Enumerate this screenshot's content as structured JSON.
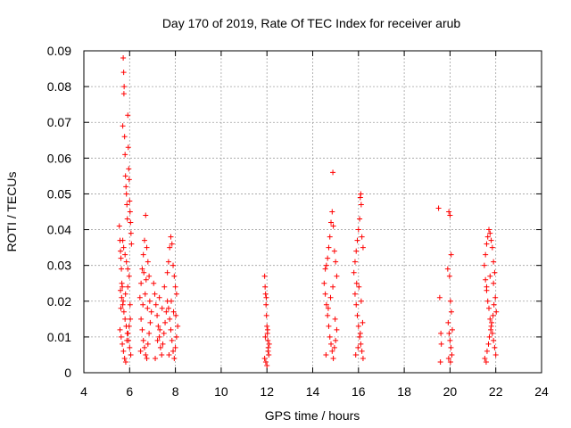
{
  "chart_data": {
    "type": "scatter",
    "title": "Day 170 of 2019, Rate Of TEC Index for receiver arub",
    "xlabel": "GPS time / hours",
    "ylabel": "ROTI / TECUs",
    "xlim": [
      4,
      24
    ],
    "ylim": [
      0,
      0.09
    ],
    "xticks": [
      4,
      6,
      8,
      10,
      12,
      14,
      16,
      18,
      20,
      22,
      24
    ],
    "yticks": [
      0,
      0.01,
      0.02,
      0.03,
      0.04,
      0.05,
      0.06,
      0.07,
      0.08,
      0.09
    ],
    "ytick_labels": [
      "0",
      "0.01",
      "0.02",
      "0.03",
      "0.04",
      "0.05",
      "0.06",
      "0.07",
      "0.08",
      "0.09"
    ],
    "grid": true,
    "marker": "+",
    "color": "#ff0000",
    "series": [
      {
        "name": "ROTI",
        "points": [
          [
            5.55,
            0.041
          ],
          [
            5.58,
            0.037
          ],
          [
            5.6,
            0.034
          ],
          [
            5.62,
            0.032
          ],
          [
            5.64,
            0.029
          ],
          [
            5.66,
            0.025
          ],
          [
            5.68,
            0.024
          ],
          [
            5.7,
            0.069
          ],
          [
            5.72,
            0.088
          ],
          [
            5.74,
            0.084
          ],
          [
            5.75,
            0.078
          ],
          [
            5.76,
            0.08
          ],
          [
            5.78,
            0.066
          ],
          [
            5.8,
            0.061
          ],
          [
            5.82,
            0.055
          ],
          [
            5.84,
            0.052
          ],
          [
            5.86,
            0.05
          ],
          [
            5.88,
            0.047
          ],
          [
            5.9,
            0.043
          ],
          [
            5.92,
            0.072
          ],
          [
            5.94,
            0.063
          ],
          [
            5.96,
            0.057
          ],
          [
            5.98,
            0.054
          ],
          [
            6.0,
            0.048
          ],
          [
            6.02,
            0.045
          ],
          [
            6.04,
            0.042
          ],
          [
            6.06,
            0.039
          ],
          [
            6.08,
            0.036
          ],
          [
            5.7,
            0.037
          ],
          [
            5.74,
            0.035
          ],
          [
            5.8,
            0.033
          ],
          [
            5.86,
            0.031
          ],
          [
            5.92,
            0.029
          ],
          [
            5.98,
            0.027
          ],
          [
            5.6,
            0.023
          ],
          [
            5.65,
            0.021
          ],
          [
            5.7,
            0.019
          ],
          [
            5.75,
            0.017
          ],
          [
            5.8,
            0.015
          ],
          [
            5.85,
            0.013
          ],
          [
            5.9,
            0.011
          ],
          [
            5.95,
            0.009
          ],
          [
            6.0,
            0.007
          ],
          [
            6.05,
            0.005
          ],
          [
            5.58,
            0.012
          ],
          [
            5.63,
            0.01
          ],
          [
            5.68,
            0.008
          ],
          [
            5.73,
            0.006
          ],
          [
            5.78,
            0.004
          ],
          [
            5.83,
            0.003
          ],
          [
            5.88,
            0.009
          ],
          [
            5.93,
            0.011
          ],
          [
            5.98,
            0.013
          ],
          [
            6.03,
            0.015
          ],
          [
            5.62,
            0.018
          ],
          [
            5.72,
            0.02
          ],
          [
            5.82,
            0.022
          ],
          [
            5.92,
            0.024
          ],
          [
            6.02,
            0.019
          ],
          [
            6.45,
            0.021
          ],
          [
            6.5,
            0.025
          ],
          [
            6.55,
            0.029
          ],
          [
            6.6,
            0.033
          ],
          [
            6.65,
            0.037
          ],
          [
            6.7,
            0.044
          ],
          [
            6.75,
            0.035
          ],
          [
            6.8,
            0.031
          ],
          [
            6.85,
            0.027
          ],
          [
            6.5,
            0.015
          ],
          [
            6.55,
            0.012
          ],
          [
            6.6,
            0.009
          ],
          [
            6.65,
            0.007
          ],
          [
            6.7,
            0.005
          ],
          [
            6.75,
            0.004
          ],
          [
            6.8,
            0.008
          ],
          [
            6.85,
            0.011
          ],
          [
            6.9,
            0.014
          ],
          [
            6.95,
            0.017
          ],
          [
            6.48,
            0.006
          ],
          [
            6.58,
            0.019
          ],
          [
            6.68,
            0.022
          ],
          [
            6.78,
            0.018
          ],
          [
            6.88,
            0.02
          ],
          [
            6.62,
            0.028
          ],
          [
            6.72,
            0.026
          ],
          [
            7.05,
            0.025
          ],
          [
            7.1,
            0.022
          ],
          [
            7.15,
            0.019
          ],
          [
            7.2,
            0.016
          ],
          [
            7.25,
            0.013
          ],
          [
            7.3,
            0.01
          ],
          [
            7.35,
            0.007
          ],
          [
            7.4,
            0.005
          ],
          [
            7.45,
            0.008
          ],
          [
            7.5,
            0.011
          ],
          [
            7.55,
            0.014
          ],
          [
            7.6,
            0.017
          ],
          [
            7.65,
            0.02
          ],
          [
            7.12,
            0.004
          ],
          [
            7.22,
            0.009
          ],
          [
            7.32,
            0.012
          ],
          [
            7.42,
            0.018
          ],
          [
            7.52,
            0.024
          ],
          [
            7.3,
            0.021
          ],
          [
            7.65,
            0.028
          ],
          [
            7.7,
            0.031
          ],
          [
            7.75,
            0.035
          ],
          [
            7.8,
            0.038
          ],
          [
            7.85,
            0.036
          ],
          [
            7.9,
            0.03
          ],
          [
            7.95,
            0.027
          ],
          [
            8.0,
            0.024
          ],
          [
            8.05,
            0.022
          ],
          [
            7.7,
            0.018
          ],
          [
            7.75,
            0.015
          ],
          [
            7.8,
            0.012
          ],
          [
            7.85,
            0.009
          ],
          [
            7.9,
            0.006
          ],
          [
            7.95,
            0.004
          ],
          [
            8.0,
            0.007
          ],
          [
            8.05,
            0.01
          ],
          [
            8.1,
            0.013
          ],
          [
            7.72,
            0.005
          ],
          [
            7.82,
            0.02
          ],
          [
            7.92,
            0.017
          ],
          [
            8.02,
            0.016
          ],
          [
            11.9,
            0.027
          ],
          [
            11.92,
            0.024
          ],
          [
            11.94,
            0.022
          ],
          [
            11.96,
            0.019
          ],
          [
            11.98,
            0.016
          ],
          [
            12.0,
            0.013
          ],
          [
            12.02,
            0.011
          ],
          [
            12.04,
            0.009
          ],
          [
            12.06,
            0.007
          ],
          [
            12.08,
            0.005
          ],
          [
            11.9,
            0.004
          ],
          [
            11.95,
            0.003
          ],
          [
            12.0,
            0.002
          ],
          [
            12.05,
            0.006
          ],
          [
            12.1,
            0.008
          ],
          [
            11.93,
            0.01
          ],
          [
            12.03,
            0.012
          ],
          [
            11.97,
            0.021
          ],
          [
            14.5,
            0.025
          ],
          [
            14.55,
            0.029
          ],
          [
            14.6,
            0.03
          ],
          [
            14.65,
            0.032
          ],
          [
            14.7,
            0.035
          ],
          [
            14.75,
            0.038
          ],
          [
            14.8,
            0.042
          ],
          [
            14.85,
            0.045
          ],
          [
            14.88,
            0.056
          ],
          [
            14.9,
            0.041
          ],
          [
            14.95,
            0.034
          ],
          [
            15.0,
            0.031
          ],
          [
            15.05,
            0.027
          ],
          [
            14.55,
            0.022
          ],
          [
            14.6,
            0.019
          ],
          [
            14.65,
            0.016
          ],
          [
            14.7,
            0.013
          ],
          [
            14.75,
            0.01
          ],
          [
            14.8,
            0.008
          ],
          [
            14.85,
            0.006
          ],
          [
            14.9,
            0.004
          ],
          [
            14.95,
            0.007
          ],
          [
            15.0,
            0.009
          ],
          [
            15.05,
            0.012
          ],
          [
            14.58,
            0.005
          ],
          [
            14.68,
            0.018
          ],
          [
            14.78,
            0.021
          ],
          [
            14.88,
            0.024
          ],
          [
            14.98,
            0.015
          ],
          [
            15.8,
            0.028
          ],
          [
            15.85,
            0.031
          ],
          [
            15.9,
            0.034
          ],
          [
            15.95,
            0.037
          ],
          [
            16.0,
            0.04
          ],
          [
            16.05,
            0.043
          ],
          [
            16.08,
            0.049
          ],
          [
            16.1,
            0.05
          ],
          [
            16.12,
            0.047
          ],
          [
            16.15,
            0.038
          ],
          [
            16.2,
            0.035
          ],
          [
            15.85,
            0.022
          ],
          [
            15.9,
            0.019
          ],
          [
            15.95,
            0.016
          ],
          [
            16.0,
            0.013
          ],
          [
            16.05,
            0.01
          ],
          [
            16.1,
            0.008
          ],
          [
            16.15,
            0.006
          ],
          [
            16.2,
            0.004
          ],
          [
            15.88,
            0.005
          ],
          [
            15.98,
            0.007
          ],
          [
            16.08,
            0.011
          ],
          [
            16.18,
            0.014
          ],
          [
            15.92,
            0.025
          ],
          [
            16.02,
            0.024
          ],
          [
            16.12,
            0.02
          ],
          [
            19.5,
            0.046
          ],
          [
            19.55,
            0.021
          ],
          [
            19.6,
            0.011
          ],
          [
            19.62,
            0.008
          ],
          [
            19.58,
            0.003
          ],
          [
            19.95,
            0.045
          ],
          [
            20.0,
            0.044
          ],
          [
            20.05,
            0.033
          ],
          [
            19.9,
            0.029
          ],
          [
            19.98,
            0.027
          ],
          [
            20.02,
            0.02
          ],
          [
            20.06,
            0.017
          ],
          [
            19.92,
            0.014
          ],
          [
            19.96,
            0.011
          ],
          [
            20.0,
            0.009
          ],
          [
            20.04,
            0.007
          ],
          [
            20.08,
            0.005
          ],
          [
            19.94,
            0.004
          ],
          [
            20.02,
            0.003
          ],
          [
            20.1,
            0.012
          ],
          [
            21.5,
            0.03
          ],
          [
            21.55,
            0.033
          ],
          [
            21.6,
            0.036
          ],
          [
            21.65,
            0.038
          ],
          [
            21.7,
            0.04
          ],
          [
            21.75,
            0.039
          ],
          [
            21.8,
            0.037
          ],
          [
            21.85,
            0.035
          ],
          [
            21.9,
            0.031
          ],
          [
            21.95,
            0.028
          ],
          [
            21.55,
            0.026
          ],
          [
            21.6,
            0.023
          ],
          [
            21.65,
            0.02
          ],
          [
            21.7,
            0.018
          ],
          [
            21.75,
            0.015
          ],
          [
            21.8,
            0.013
          ],
          [
            21.85,
            0.011
          ],
          [
            21.9,
            0.009
          ],
          [
            21.95,
            0.007
          ],
          [
            22.0,
            0.005
          ],
          [
            21.52,
            0.004
          ],
          [
            21.58,
            0.003
          ],
          [
            21.62,
            0.006
          ],
          [
            21.68,
            0.008
          ],
          [
            21.72,
            0.01
          ],
          [
            21.78,
            0.012
          ],
          [
            21.82,
            0.014
          ],
          [
            21.88,
            0.016
          ],
          [
            21.92,
            0.019
          ],
          [
            21.98,
            0.021
          ],
          [
            22.02,
            0.017
          ],
          [
            21.6,
            0.024
          ],
          [
            21.75,
            0.027
          ],
          [
            21.9,
            0.025
          ]
        ]
      }
    ]
  }
}
